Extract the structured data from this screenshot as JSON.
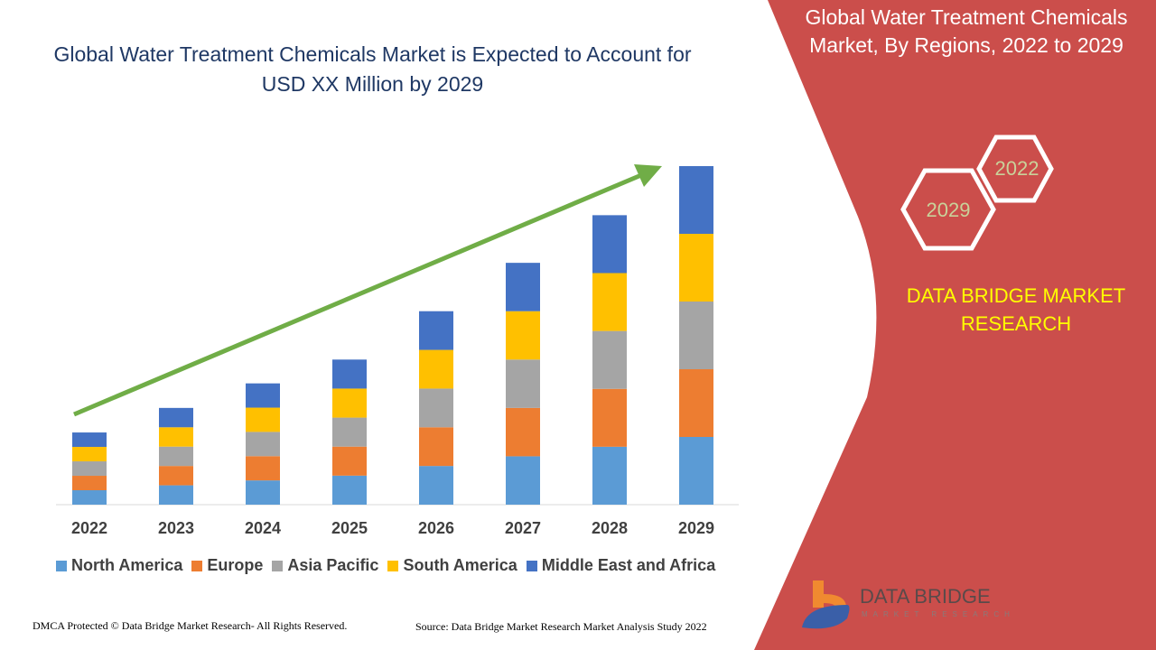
{
  "title": "Global Water Treatment Chemicals Market is Expected to Account for USD XX Million by 2029",
  "panel": {
    "title": "Global Water Treatment Chemicals Market, By Regions, 2022 to 2029",
    "hex_labels": [
      "2022",
      "2029"
    ],
    "brand": "DATA BRIDGE MARKET RESEARCH",
    "logo_text": "DATA BRIDGE",
    "logo_sub": "MARKET RESEARCH",
    "color": "#cb4e4b"
  },
  "footer": {
    "left": "DMCA Protected © Data Bridge Market Research- All Rights Reserved.",
    "right": "Source: Data Bridge Market Research Market Analysis Study 2022"
  },
  "chart_data": {
    "type": "bar",
    "stacked": true,
    "categories": [
      "2022",
      "2023",
      "2024",
      "2025",
      "2026",
      "2027",
      "2028",
      "2029"
    ],
    "series": [
      {
        "name": "North America",
        "color": "#5b9bd5",
        "values": [
          1.0,
          1.34,
          1.68,
          2.01,
          2.68,
          3.35,
          4.01,
          4.69
        ]
      },
      {
        "name": "Europe",
        "color": "#ed7d31",
        "values": [
          1.0,
          1.34,
          1.68,
          2.01,
          2.68,
          3.35,
          4.01,
          4.69
        ]
      },
      {
        "name": "Asia Pacific",
        "color": "#a5a5a5",
        "values": [
          1.0,
          1.34,
          1.68,
          2.01,
          2.68,
          3.35,
          4.01,
          4.69
        ]
      },
      {
        "name": "South America",
        "color": "#ffc000",
        "values": [
          1.0,
          1.34,
          1.68,
          2.01,
          2.68,
          3.35,
          4.01,
          4.69
        ]
      },
      {
        "name": "Middle East and Africa",
        "color": "#4472c4",
        "values": [
          1.0,
          1.34,
          1.68,
          2.01,
          2.68,
          3.35,
          4.01,
          4.69
        ]
      }
    ],
    "ylim": [
      0,
      23.5
    ],
    "grid": false,
    "legend": "bottom",
    "trend_arrow_color": "#70ad47"
  }
}
